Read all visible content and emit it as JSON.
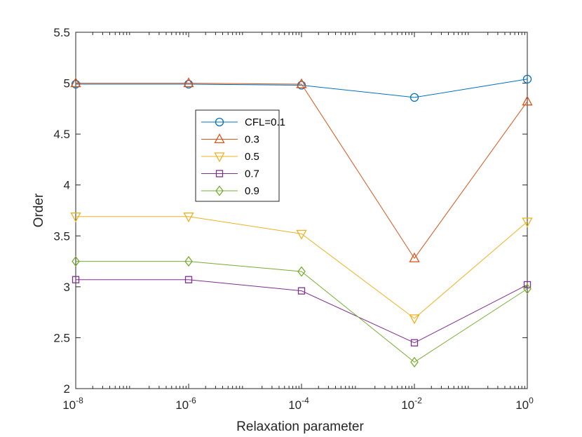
{
  "chart_data": {
    "type": "line",
    "xscale": "log",
    "xlabel": "Relaxation parameter",
    "ylabel": "Order",
    "xlim": [
      1e-08,
      1
    ],
    "ylim": [
      2,
      5.5
    ],
    "x": [
      1e-08,
      1e-06,
      0.0001,
      0.01,
      1
    ],
    "xtick_bases": [
      "10",
      "10",
      "10",
      "10",
      "10"
    ],
    "xtick_exponents": [
      "-8",
      "-6",
      "-4",
      "-2",
      "0"
    ],
    "yticks": [
      "2",
      "2.5",
      "3",
      "3.5",
      "4",
      "4.5",
      "5",
      "5.5"
    ],
    "grid": false,
    "legend_position": "upper-middle",
    "series": [
      {
        "name": "CFL=0.1",
        "color": "#0072BD",
        "marker": "circle",
        "values": [
          4.99,
          4.99,
          4.98,
          4.86,
          5.04
        ]
      },
      {
        "name": "0.3",
        "color": "#D95319",
        "marker": "triangle-up",
        "values": [
          5.0,
          5.0,
          4.99,
          3.28,
          4.82
        ]
      },
      {
        "name": "0.5",
        "color": "#EDB120",
        "marker": "triangle-down",
        "values": [
          3.69,
          3.69,
          3.52,
          2.69,
          3.64
        ]
      },
      {
        "name": "0.7",
        "color": "#7E2F8E",
        "marker": "square",
        "values": [
          3.07,
          3.07,
          2.96,
          2.45,
          3.02
        ]
      },
      {
        "name": "0.9",
        "color": "#77AC30",
        "marker": "diamond",
        "values": [
          3.25,
          3.25,
          3.15,
          2.26,
          2.98
        ]
      }
    ]
  }
}
